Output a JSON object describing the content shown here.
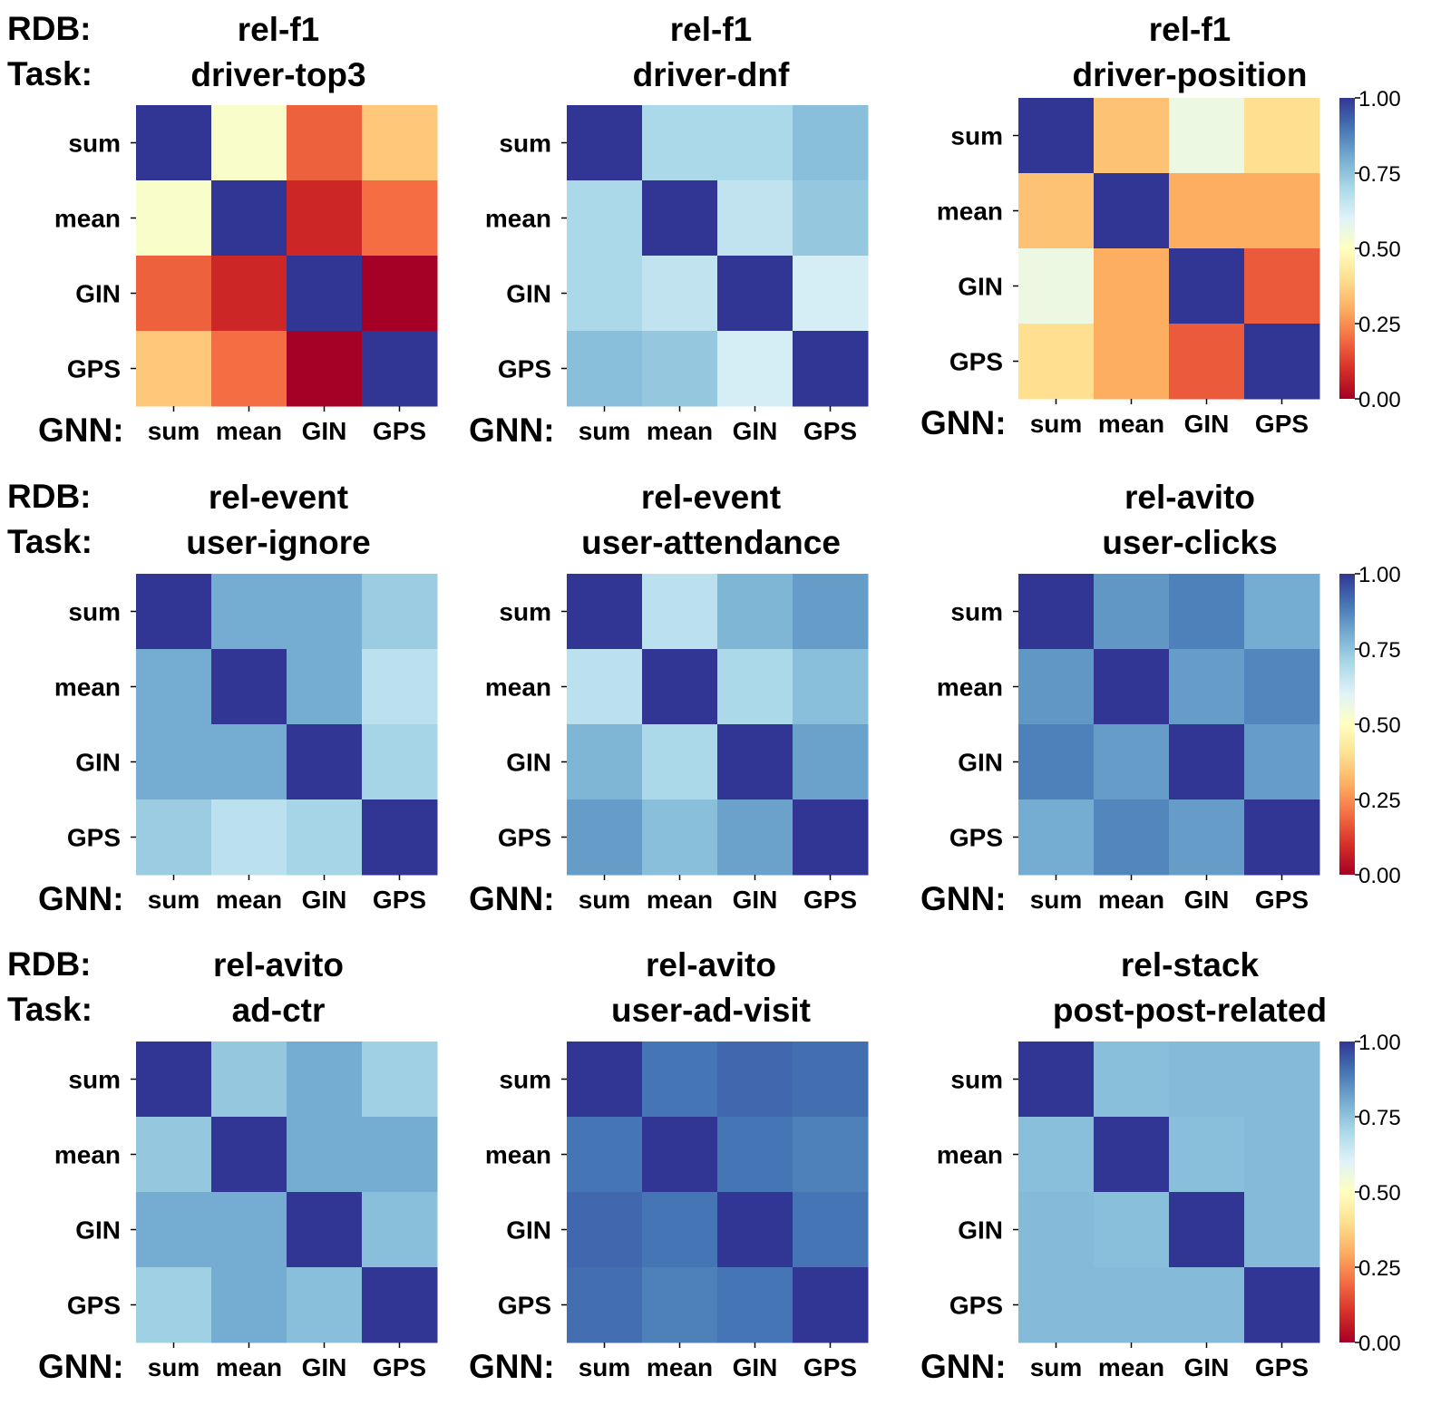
{
  "colorbar": {
    "ticks": [
      "1.00",
      "0.75",
      "0.50",
      "0.25",
      "0.00"
    ],
    "tick_values": [
      1.0,
      0.75,
      0.5,
      0.25,
      0.0
    ],
    "range": [
      0.0,
      1.0
    ],
    "colormap": "RdYlBu",
    "stops": [
      "#a50026",
      "#d73027",
      "#f46d43",
      "#fdae61",
      "#fee090",
      "#ffffbf",
      "#e0f3f8",
      "#abd9e9",
      "#74add1",
      "#4575b4",
      "#313695"
    ]
  },
  "chart_data": [
    {
      "type": "heatmap",
      "rdb_label": "RDB:",
      "task_label": "Task:",
      "gnn_label": "GNN:",
      "rdb": "rel-f1",
      "task": "driver-top3",
      "x_labels": [
        "sum",
        "mean",
        "GIN",
        "GPS"
      ],
      "y_labels": [
        "sum",
        "mean",
        "GIN",
        "GPS"
      ],
      "values": [
        [
          1.0,
          0.52,
          0.18,
          0.35
        ],
        [
          0.52,
          1.0,
          0.08,
          0.2
        ],
        [
          0.18,
          0.08,
          1.0,
          0.0
        ],
        [
          0.35,
          0.2,
          0.0,
          1.0
        ]
      ]
    },
    {
      "type": "heatmap",
      "rdb_label": "RDB:",
      "task_label": "Task:",
      "gnn_label": "GNN:",
      "rdb": "rel-f1",
      "task": "driver-dnf",
      "x_labels": [
        "sum",
        "mean",
        "GIN",
        "GPS"
      ],
      "y_labels": [
        "sum",
        "mean",
        "GIN",
        "GPS"
      ],
      "values": [
        [
          1.0,
          0.7,
          0.7,
          0.76
        ],
        [
          0.7,
          1.0,
          0.66,
          0.74
        ],
        [
          0.7,
          0.66,
          1.0,
          0.62
        ],
        [
          0.76,
          0.74,
          0.62,
          1.0
        ]
      ]
    },
    {
      "type": "heatmap",
      "rdb_label": "RDB:",
      "task_label": "Task:",
      "gnn_label": "GNN:",
      "rdb": "rel-f1",
      "task": "driver-position",
      "x_labels": [
        "sum",
        "mean",
        "GIN",
        "GPS"
      ],
      "y_labels": [
        "sum",
        "mean",
        "GIN",
        "GPS"
      ],
      "values": [
        [
          1.0,
          0.34,
          0.56,
          0.4
        ],
        [
          0.34,
          1.0,
          0.3,
          0.3
        ],
        [
          0.56,
          0.3,
          1.0,
          0.17
        ],
        [
          0.4,
          0.3,
          0.17,
          1.0
        ]
      ]
    },
    {
      "type": "heatmap",
      "rdb_label": "RDB:",
      "task_label": "Task:",
      "gnn_label": "GNN:",
      "rdb": "rel-event",
      "task": "user-ignore",
      "x_labels": [
        "sum",
        "mean",
        "GIN",
        "GPS"
      ],
      "y_labels": [
        "sum",
        "mean",
        "GIN",
        "GPS"
      ],
      "values": [
        [
          1.0,
          0.8,
          0.8,
          0.73
        ],
        [
          0.8,
          1.0,
          0.8,
          0.67
        ],
        [
          0.8,
          0.8,
          1.0,
          0.71
        ],
        [
          0.73,
          0.67,
          0.71,
          1.0
        ]
      ]
    },
    {
      "type": "heatmap",
      "rdb_label": "RDB:",
      "task_label": "Task:",
      "gnn_label": "GNN:",
      "rdb": "rel-event",
      "task": "user-attendance",
      "x_labels": [
        "sum",
        "mean",
        "GIN",
        "GPS"
      ],
      "y_labels": [
        "sum",
        "mean",
        "GIN",
        "GPS"
      ],
      "values": [
        [
          1.0,
          0.67,
          0.78,
          0.83
        ],
        [
          0.67,
          1.0,
          0.7,
          0.76
        ],
        [
          0.78,
          0.7,
          1.0,
          0.82
        ],
        [
          0.83,
          0.76,
          0.82,
          1.0
        ]
      ]
    },
    {
      "type": "heatmap",
      "rdb_label": "RDB:",
      "task_label": "Task:",
      "gnn_label": "GNN:",
      "rdb": "rel-avito",
      "task": "user-clicks",
      "x_labels": [
        "sum",
        "mean",
        "GIN",
        "GPS"
      ],
      "y_labels": [
        "sum",
        "mean",
        "GIN",
        "GPS"
      ],
      "values": [
        [
          1.0,
          0.84,
          0.88,
          0.8
        ],
        [
          0.84,
          1.0,
          0.83,
          0.87
        ],
        [
          0.88,
          0.83,
          1.0,
          0.83
        ],
        [
          0.8,
          0.87,
          0.83,
          1.0
        ]
      ]
    },
    {
      "type": "heatmap",
      "rdb_label": "RDB:",
      "task_label": "Task:",
      "gnn_label": "GNN:",
      "rdb": "rel-avito",
      "task": "ad-ctr",
      "x_labels": [
        "sum",
        "mean",
        "GIN",
        "GPS"
      ],
      "y_labels": [
        "sum",
        "mean",
        "GIN",
        "GPS"
      ],
      "values": [
        [
          1.0,
          0.74,
          0.8,
          0.72
        ],
        [
          0.74,
          1.0,
          0.8,
          0.8
        ],
        [
          0.8,
          0.8,
          1.0,
          0.76
        ],
        [
          0.72,
          0.8,
          0.76,
          1.0
        ]
      ]
    },
    {
      "type": "heatmap",
      "rdb_label": "RDB:",
      "task_label": "Task:",
      "gnn_label": "GNN:",
      "rdb": "rel-avito",
      "task": "user-ad-visit",
      "x_labels": [
        "sum",
        "mean",
        "GIN",
        "GPS"
      ],
      "y_labels": [
        "sum",
        "mean",
        "GIN",
        "GPS"
      ],
      "values": [
        [
          1.0,
          0.9,
          0.92,
          0.91
        ],
        [
          0.9,
          1.0,
          0.9,
          0.88
        ],
        [
          0.92,
          0.9,
          1.0,
          0.9
        ],
        [
          0.91,
          0.88,
          0.9,
          1.0
        ]
      ]
    },
    {
      "type": "heatmap",
      "rdb_label": "RDB:",
      "task_label": "Task:",
      "gnn_label": "GNN:",
      "rdb": "rel-stack",
      "task": "post-post-related",
      "x_labels": [
        "sum",
        "mean",
        "GIN",
        "GPS"
      ],
      "y_labels": [
        "sum",
        "mean",
        "GIN",
        "GPS"
      ],
      "values": [
        [
          1.0,
          0.76,
          0.77,
          0.77
        ],
        [
          0.76,
          1.0,
          0.76,
          0.77
        ],
        [
          0.77,
          0.76,
          1.0,
          0.77
        ],
        [
          0.77,
          0.77,
          0.77,
          1.0
        ]
      ]
    }
  ]
}
